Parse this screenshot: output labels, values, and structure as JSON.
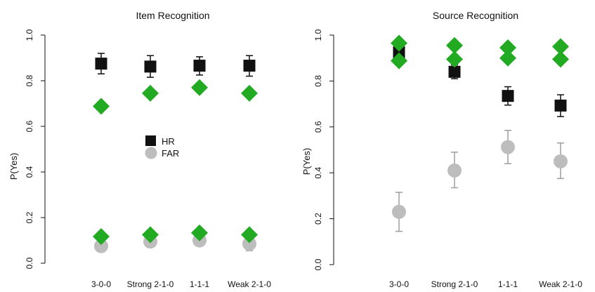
{
  "chart_data": [
    {
      "type": "scatter",
      "title": "Item Recognition",
      "ylabel": "P(Yes)",
      "xlabel": "",
      "ylim": [
        0,
        1
      ],
      "yticks": [
        "0.0",
        "0.2",
        "0.4",
        "0.6",
        "0.8",
        "1.0"
      ],
      "categories": [
        "3-0-0",
        "Strong 2-1-0",
        "1-1-1",
        "Weak 2-1-0"
      ],
      "legend": {
        "position": "center",
        "entries": [
          "HR",
          "FAR"
        ]
      },
      "series": [
        {
          "name": "HR",
          "marker": "square",
          "color": "#111111",
          "values": [
            0.875,
            0.862,
            0.866,
            0.866
          ],
          "error": [
            [
              0.83,
              0.92
            ],
            [
              0.815,
              0.91
            ],
            [
              0.825,
              0.905
            ],
            [
              0.82,
              0.91
            ]
          ]
        },
        {
          "name": "FAR",
          "marker": "circle",
          "color": "#bdbdbd",
          "values": [
            0.075,
            0.095,
            0.1,
            0.085
          ],
          "error": [
            [
              0.05,
              0.1
            ],
            [
              0.07,
              0.12
            ],
            [
              0.08,
              0.12
            ],
            [
              0.055,
              0.11
            ]
          ]
        },
        {
          "marker": "diamond",
          "color": "#22aa22",
          "values": [
            0.688,
            0.745,
            0.77,
            0.745
          ]
        },
        {
          "marker": "diamond",
          "color": "#22aa22",
          "values": [
            0.117,
            0.125,
            0.133,
            0.125
          ]
        }
      ]
    },
    {
      "type": "scatter",
      "title": "Source Recognition",
      "ylabel": "P(Yes)",
      "xlabel": "",
      "ylim": [
        0,
        1
      ],
      "yticks": [
        "0.0",
        "0.2",
        "0.4",
        "0.6",
        "0.8",
        "1.0"
      ],
      "categories": [
        "3-0-0",
        "Strong 2-1-0",
        "1-1-1",
        "Weak 2-1-0"
      ],
      "series": [
        {
          "name": "HR",
          "marker": "square",
          "color": "#111111",
          "values": [
            0.925,
            0.84,
            0.735,
            0.693
          ],
          "error": [
            [
              0.9,
              0.95
            ],
            [
              0.81,
              0.87
            ],
            [
              0.695,
              0.775
            ],
            [
              0.645,
              0.74
            ]
          ]
        },
        {
          "name": "FAR",
          "marker": "circle",
          "color": "#bdbdbd",
          "values": [
            0.23,
            0.41,
            0.512,
            0.45
          ],
          "error": [
            [
              0.145,
              0.315
            ],
            [
              0.335,
              0.49
            ],
            [
              0.44,
              0.585
            ],
            [
              0.375,
              0.53
            ]
          ]
        },
        {
          "marker": "diamond",
          "color": "#22aa22",
          "values": [
            0.965,
            0.955,
            0.945,
            0.95
          ]
        },
        {
          "marker": "diamond",
          "color": "#22aa22",
          "values": [
            0.888,
            0.895,
            0.9,
            0.895
          ]
        }
      ]
    }
  ]
}
